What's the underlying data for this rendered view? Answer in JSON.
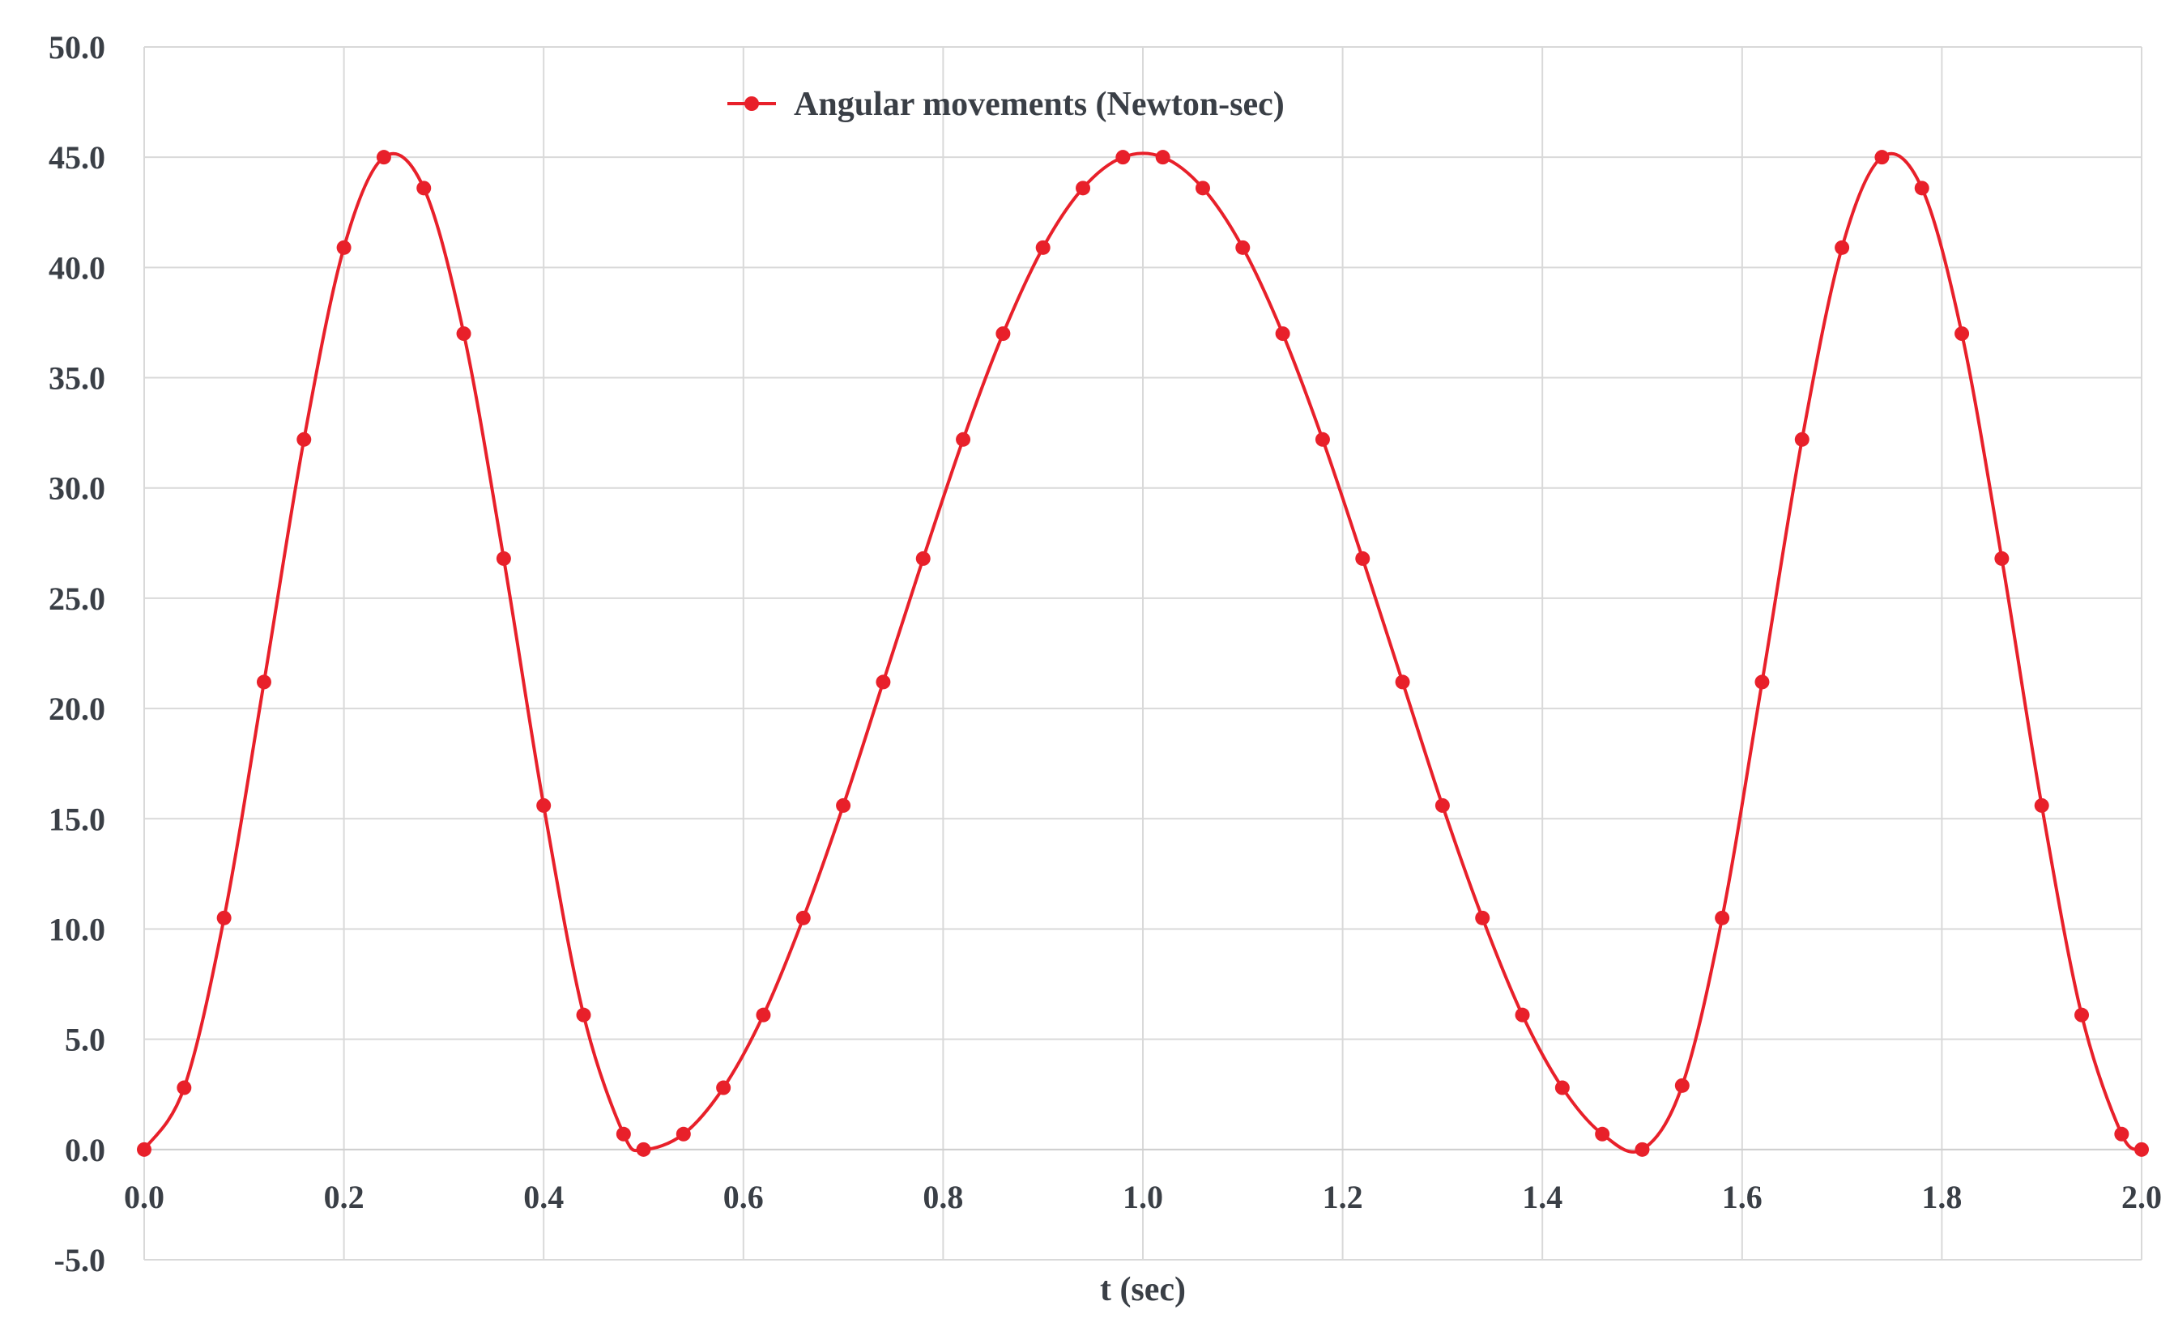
{
  "colors": {
    "series": "#e8202a",
    "grid": "#d9d9d9",
    "text": "#3a3f46",
    "background": "#ffffff"
  },
  "chart_data": {
    "type": "line",
    "xlabel": "t (sec)",
    "ylabel": "",
    "xlim": [
      0,
      2
    ],
    "ylim": [
      -5,
      50
    ],
    "x_ticks": [
      "0.0",
      "0.2",
      "0.4",
      "0.6",
      "0.8",
      "1.0",
      "1.2",
      "1.4",
      "1.6",
      "1.8",
      "2.0"
    ],
    "y_ticks": [
      "-5.0",
      "0.0",
      "5.0",
      "10.0",
      "15.0",
      "20.0",
      "25.0",
      "30.0",
      "35.0",
      "40.0",
      "45.0",
      "50.0"
    ],
    "grid": true,
    "legend_position": "top-center",
    "series": [
      {
        "name": "Angular movements (Newton-sec)",
        "marker": "circle",
        "smooth": true,
        "x": [
          0.0,
          0.04,
          0.08,
          0.12,
          0.16,
          0.2,
          0.24,
          0.28,
          0.32,
          0.36,
          0.4,
          0.44,
          0.48,
          0.5,
          0.54,
          0.58,
          0.62,
          0.66,
          0.7,
          0.74,
          0.78,
          0.82,
          0.86,
          0.9,
          0.94,
          0.98,
          1.02,
          1.06,
          1.1,
          1.14,
          1.18,
          1.22,
          1.26,
          1.3,
          1.34,
          1.38,
          1.42,
          1.46,
          1.5,
          1.54,
          1.58,
          1.62,
          1.66,
          1.7,
          1.74,
          1.78,
          1.82,
          1.86,
          1.9,
          1.94,
          1.98,
          2.0
        ],
        "y": [
          0.0,
          2.8,
          10.5,
          21.2,
          32.2,
          40.9,
          45.0,
          43.6,
          37.0,
          26.8,
          15.6,
          6.1,
          0.7,
          0.0,
          0.7,
          2.8,
          6.1,
          10.5,
          15.6,
          21.2,
          26.8,
          32.2,
          37.0,
          40.9,
          43.6,
          45.0,
          45.0,
          43.6,
          40.9,
          37.0,
          32.2,
          26.8,
          21.2,
          15.6,
          10.5,
          6.1,
          2.8,
          0.7,
          0.0,
          2.9,
          10.5,
          21.2,
          32.2,
          40.9,
          45.0,
          43.6,
          37.0,
          26.8,
          15.6,
          6.1,
          0.7,
          0.0
        ]
      }
    ]
  }
}
